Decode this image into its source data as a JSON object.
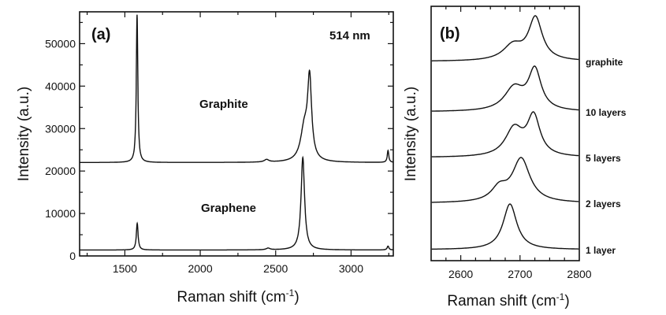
{
  "chart_data": [
    {
      "panel_label": "(a)",
      "type": "line",
      "annotation": "514 nm",
      "xlabel": "Raman shift (cm",
      "xlabel_sup": "-1",
      "xlabel_tail": ")",
      "ylabel": "Intensity (a.u.)",
      "xlim": [
        1200,
        3280
      ],
      "ylim": [
        0,
        57500
      ],
      "x_ticks": [
        "1500",
        "2000",
        "2500",
        "3000"
      ],
      "y_ticks": [
        "0",
        "10000",
        "20000",
        "30000",
        "40000",
        "50000"
      ],
      "series": [
        {
          "name": "Graphite",
          "baseline": 22000,
          "peaks": [
            {
              "x": 1581,
              "height": 34800,
              "width": 6
            },
            {
              "x": 2440,
              "height": 600,
              "width": 18
            },
            {
              "x": 2690,
              "height": 7500,
              "width": 30
            },
            {
              "x": 2725,
              "height": 18500,
              "width": 16
            },
            {
              "x": 3245,
              "height": 2800,
              "width": 6
            }
          ]
        },
        {
          "name": "Graphene",
          "baseline": 1400,
          "peaks": [
            {
              "x": 1582,
              "height": 6300,
              "width": 7
            },
            {
              "x": 2450,
              "height": 400,
              "width": 15
            },
            {
              "x": 2680,
              "height": 21800,
              "width": 14
            },
            {
              "x": 3245,
              "height": 900,
              "width": 7
            }
          ]
        }
      ]
    },
    {
      "panel_label": "(b)",
      "type": "line",
      "xlabel": "Raman shift (cm",
      "xlabel_sup": "-1",
      "xlabel_tail": ")",
      "ylabel": "Intensity (a.u.)",
      "xlim": [
        2550,
        2800
      ],
      "x_ticks": [
        "2600",
        "2700",
        "2800"
      ],
      "series": [
        {
          "name": "graphite",
          "peaks": [
            {
              "x": 2688,
              "height": 0.35,
              "width": 20
            },
            {
              "x": 2726,
              "height": 1.0,
              "width": 14
            }
          ]
        },
        {
          "name": "10 layers",
          "peaks": [
            {
              "x": 2690,
              "height": 0.5,
              "width": 20
            },
            {
              "x": 2725,
              "height": 0.88,
              "width": 13
            }
          ]
        },
        {
          "name": "5 layers",
          "peaks": [
            {
              "x": 2690,
              "height": 0.6,
              "width": 18
            },
            {
              "x": 2723,
              "height": 0.85,
              "width": 13
            }
          ]
        },
        {
          "name": "2 layers",
          "peaks": [
            {
              "x": 2665,
              "height": 0.3,
              "width": 16
            },
            {
              "x": 2702,
              "height": 1.0,
              "width": 18
            }
          ]
        },
        {
          "name": "1 layer",
          "peaks": [
            {
              "x": 2683,
              "height": 1.0,
              "width": 14
            }
          ]
        }
      ]
    }
  ]
}
